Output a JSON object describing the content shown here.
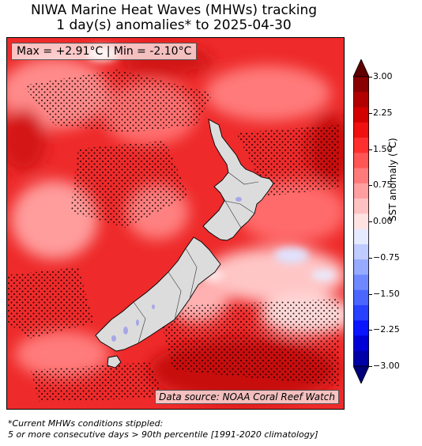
{
  "title_line1": "NIWA Marine Heat Waves (MHWs) tracking",
  "title_line2": "1 day(s) anomalies* to 2025-04-30",
  "max_min": "Max = +2.91°C | Min = -2.10°C",
  "data_source": "Data source: NOAA Coral Reef Watch",
  "colorbar": {
    "label": "SST anomaly (°C)",
    "range": [
      -3.0,
      3.0
    ],
    "ticks": [
      "3.00",
      "2.25",
      "1.50",
      "0.75",
      "0.00",
      "−0.75",
      "−1.50",
      "−2.25",
      "−3.00"
    ],
    "colors": [
      "#00007a",
      "#0000a8",
      "#0000d6",
      "#0a14ff",
      "#2840ff",
      "#4a66ff",
      "#6f88ff",
      "#96aaff",
      "#c0cbff",
      "#e6eaff",
      "#ffe3e3",
      "#ffc2c2",
      "#ff9f9f",
      "#ff7a7a",
      "#ff5555",
      "#ff2f2f",
      "#f01010",
      "#d40000",
      "#b20000",
      "#8a0000",
      "#600000"
    ]
  },
  "footnote_line1": "*Current MHWs conditions stippled:",
  "footnote_line2": "5 or more consecutive days > 90th percentile [1991-2020 climatology]"
}
